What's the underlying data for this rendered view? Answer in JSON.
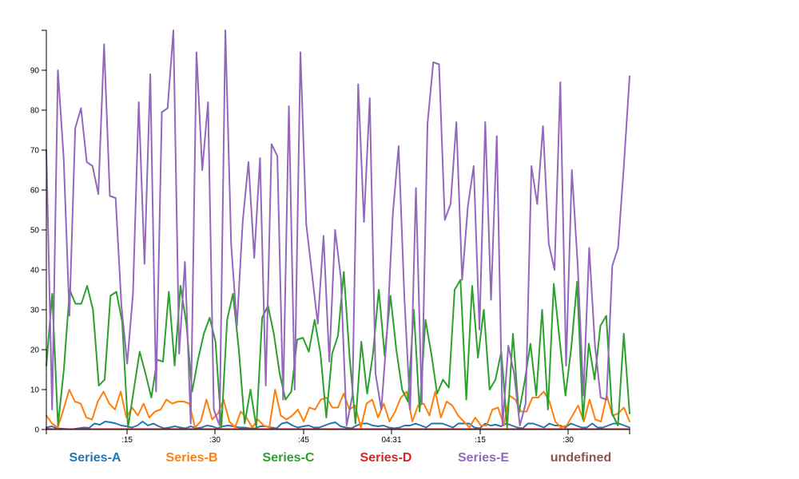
{
  "chart_data": {
    "type": "line",
    "title": "",
    "xlabel": "",
    "ylabel": "",
    "ylim": [
      0,
      100
    ],
    "y_ticks": [
      0,
      10,
      20,
      30,
      40,
      50,
      60,
      70,
      80,
      90
    ],
    "x_tick_labels": [
      ":15",
      ":30",
      ":45",
      "04:31",
      ":15",
      ":30"
    ],
    "grid": false,
    "legend": "bottom",
    "colors": {
      "Series-A": "#1f77b4",
      "Series-B": "#ff7f0e",
      "Series-C": "#2ca02c",
      "Series-D": "#d62728",
      "Series-E": "#9467bd",
      "undefined": "#8c564b"
    },
    "legend_entries": [
      "Series-A",
      "Series-B",
      "Series-C",
      "Series-D",
      "Series-E",
      "undefined"
    ],
    "series": [
      {
        "name": "Series-A",
        "values": [
          0.5,
          0.8,
          0.3,
          0.2,
          0.1,
          0.1,
          0.3,
          0.5,
          0.4,
          1.5,
          1.2,
          2.0,
          1.8,
          1.5,
          1.0,
          0.8,
          0.5,
          1.0,
          2.0,
          1.0,
          1.5,
          0.8,
          0.3,
          0.5,
          0.8,
          0.5,
          0.3,
          0.8,
          0.3,
          0.5,
          1.0,
          0.8,
          0.3,
          0.8,
          1.0,
          0.8,
          0.5,
          0.5,
          0.3,
          0.3,
          0.8,
          0.8,
          0.5,
          0.3,
          1.5,
          1.8,
          1.0,
          0.5,
          0.8,
          1.0,
          0.5,
          0.5,
          1.0,
          1.5,
          1.8,
          0.8,
          0.5,
          0.3,
          1.0,
          1.5,
          1.5,
          1.0,
          0.8,
          1.0,
          0.5,
          0.3,
          0.5,
          1.0,
          1.0,
          1.5,
          1.0,
          0.5,
          1.5,
          1.5,
          1.5,
          1.0,
          0.5,
          1.5,
          1.5,
          1.5,
          0.5,
          0.3,
          1.5,
          1.0,
          1.2,
          0.8,
          1.5,
          1.0,
          0.5,
          0.3,
          1.5,
          1.5,
          1.0,
          0.5,
          1.5,
          1.0,
          1.0,
          0.5,
          1.5,
          1.0,
          0.5,
          0.5,
          1.5,
          0.5,
          0.5,
          1.0,
          1.5,
          1.5,
          1.0,
          0.5
        ]
      },
      {
        "name": "Series-B",
        "values": [
          3.5,
          1.5,
          0.5,
          5.0,
          10.0,
          7.0,
          6.5,
          3.0,
          2.5,
          7.0,
          9.5,
          6.5,
          5.0,
          9.5,
          3.0,
          5.5,
          3.5,
          6.5,
          3.0,
          4.5,
          5.0,
          7.5,
          6.5,
          7.0,
          7.0,
          6.5,
          0.5,
          2.0,
          7.5,
          2.5,
          4.0,
          7.5,
          2.0,
          0.5,
          4.5,
          3.0,
          0.5,
          2.5,
          1.0,
          0.5,
          10.0,
          3.5,
          2.5,
          3.5,
          5.0,
          2.0,
          5.5,
          5.0,
          7.5,
          8.0,
          5.5,
          5.5,
          9.0,
          5.0,
          6.0,
          0.5,
          6.5,
          7.5,
          3.0,
          6.5,
          2.0,
          4.5,
          8.0,
          9.5,
          2.0,
          6.0,
          6.5,
          3.5,
          9.5,
          3.0,
          7.0,
          6.0,
          3.5,
          2.0,
          0.5,
          3.0,
          1.0,
          1.0,
          5.0,
          5.5,
          1.0,
          8.5,
          7.5,
          4.5,
          4.5,
          8.0,
          8.0,
          9.5,
          7.0,
          2.0,
          0.5,
          1.0,
          3.5,
          6.0,
          2.0,
          7.5,
          2.5,
          2.0,
          8.5,
          3.5,
          4.0,
          5.5,
          2.0
        ]
      },
      {
        "name": "Series-C",
        "values": [
          16.0,
          34.0,
          1.0,
          15.0,
          35.0,
          31.5,
          31.5,
          36.0,
          30.0,
          11.0,
          12.5,
          33.5,
          34.5,
          27.0,
          0.5,
          10.0,
          19.5,
          14.0,
          8.0,
          17.5,
          17.0,
          34.5,
          16.0,
          36.0,
          26.5,
          9.5,
          17.5,
          24.0,
          28.0,
          22.0,
          0.5,
          27.5,
          34.0,
          20.0,
          1.5,
          10.0,
          0.5,
          28.0,
          31.0,
          24.0,
          14.0,
          7.5,
          9.5,
          22.5,
          23.0,
          19.5,
          27.5,
          19.0,
          3.0,
          19.0,
          23.5,
          39.5,
          18.0,
          1.5,
          22.0,
          9.0,
          19.0,
          35.0,
          18.5,
          33.5,
          20.0,
          10.0,
          7.0,
          30.0,
          4.5,
          27.5,
          19.0,
          9.0,
          12.5,
          10.5,
          35.0,
          37.5,
          7.5,
          36.0,
          18.0,
          30.0,
          10.0,
          12.5,
          19.5,
          0.5,
          24.0,
          4.0,
          12.0,
          21.5,
          8.5,
          30.0,
          5.0,
          36.5,
          22.5,
          8.5,
          20.5,
          37.0,
          2.5,
          21.5,
          12.5,
          26.0,
          28.5,
          4.0,
          1.0,
          24.0,
          4.0
        ]
      },
      {
        "name": "Series-D",
        "values": [
          0.2,
          0.1,
          0.1,
          0.1,
          0.1,
          0.1,
          0.1,
          0.1,
          0.1,
          0.1,
          0.1,
          0.1,
          0.1,
          0.1,
          0.1,
          0.1,
          0.1,
          0.1,
          0.1,
          0.1,
          0.1,
          0.1,
          0.1,
          0.1,
          0.1,
          0.1,
          0.1,
          0.1,
          0.1,
          0.1,
          0.1,
          0.1,
          0.1,
          0.1,
          0.1,
          0.1,
          0.1,
          0.1,
          0.1,
          0.1,
          0.1,
          0.1,
          0.1,
          0.1,
          0.1,
          0.1,
          0.1,
          0.1,
          0.1,
          0.1,
          0.1,
          0.1,
          0.1,
          0.1,
          0.1,
          0.1,
          0.1,
          0.1,
          0.1,
          0.1,
          0.1,
          0.1,
          0.1,
          0.1,
          0.1,
          0.1,
          0.1,
          0.1,
          0.1,
          0.1,
          0.1,
          0.1,
          0.1,
          0.1,
          0.1,
          0.1,
          0.1,
          0.1,
          0.1,
          0.1,
          0.1,
          0.1,
          0.1,
          0.1,
          0.1,
          0.1,
          0.1,
          0.1,
          0.1,
          0.1,
          0.1,
          0.1,
          0.1,
          0.1,
          0.1,
          0.1,
          0.1,
          0.1,
          0.1,
          0.1,
          0.1
        ]
      },
      {
        "name": "Series-E",
        "values": [
          70.0,
          5.0,
          90.0,
          68.0,
          28.5,
          75.5,
          80.5,
          67.0,
          66.0,
          59.0,
          96.5,
          58.5,
          58.0,
          31.0,
          16.5,
          34.0,
          82.0,
          41.5,
          89.0,
          9.5,
          79.5,
          80.5,
          100.0,
          19.0,
          42.0,
          1.5,
          94.5,
          65.0,
          82.0,
          5.0,
          1.0,
          100.0,
          46.5,
          26.0,
          52.0,
          67.0,
          43.0,
          68.0,
          11.0,
          71.5,
          68.5,
          7.5,
          81.0,
          10.0,
          94.5,
          51.5,
          39.0,
          26.5,
          48.5,
          17.0,
          50.0,
          38.0,
          1.0,
          8.5,
          86.5,
          52.0,
          83.0,
          14.0,
          5.0,
          24.5,
          54.0,
          71.0,
          33.0,
          5.0,
          60.5,
          6.5,
          76.5,
          92.0,
          91.5,
          52.5,
          56.5,
          77.0,
          37.5,
          56.0,
          66.0,
          25.0,
          77.0,
          32.5,
          73.5,
          1.0,
          21.0,
          14.0,
          1.0,
          6.5,
          66.0,
          56.5,
          76.0,
          46.5,
          40.0,
          87.0,
          16.0,
          65.0,
          41.5,
          8.5,
          45.5,
          21.0,
          8.0,
          7.5,
          41.0,
          45.5,
          66.0,
          88.5
        ]
      }
    ]
  }
}
